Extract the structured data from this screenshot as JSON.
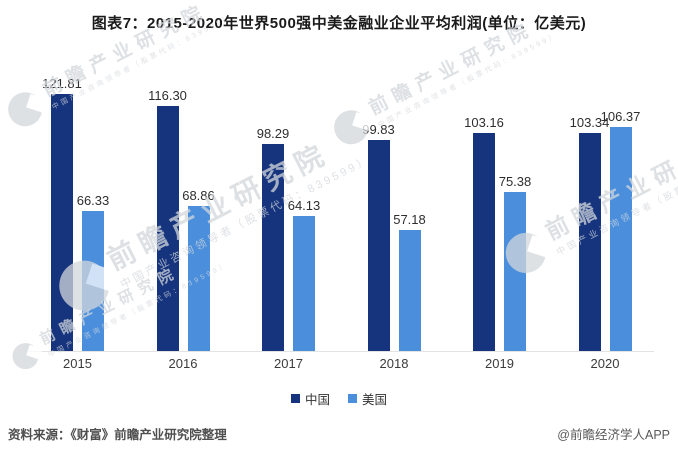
{
  "title": "图表7：2015-2020年世界500强中美金融业企业平均利润(单位：亿美元)",
  "chart_data": {
    "type": "bar",
    "categories": [
      "2015",
      "2016",
      "2017",
      "2018",
      "2019",
      "2020"
    ],
    "series": [
      {
        "name": "中国",
        "color": "#16347d",
        "values": [
          121.81,
          116.3,
          98.29,
          99.83,
          103.16,
          103.34
        ]
      },
      {
        "name": "美国",
        "color": "#4a8edc",
        "values": [
          66.33,
          68.86,
          64.13,
          57.18,
          75.38,
          106.37
        ]
      }
    ],
    "ylabel": "",
    "xlabel": "",
    "unit": "亿美元",
    "ylim": [
      0,
      130
    ],
    "grid": false,
    "legend_position": "bottom",
    "value_labels": true,
    "value_label_format": "2-decimals"
  },
  "legend": {
    "items": [
      {
        "label": "中国",
        "color": "#16347d"
      },
      {
        "label": "美国",
        "color": "#4a8edc"
      }
    ]
  },
  "footer": {
    "source": "资料来源：《财富》前瞻产业研究院整理",
    "credit": "@前瞻经济学人APP"
  },
  "watermark": {
    "text": "前瞻产业研究院",
    "subtext": "中国产业咨询领导者（股票代码：839599）"
  }
}
